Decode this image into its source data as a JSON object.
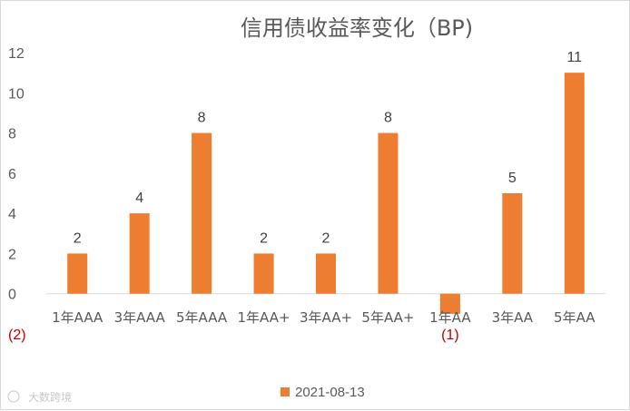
{
  "chart_data": {
    "type": "bar",
    "title": "信用债收益率变化（BP)",
    "categories": [
      "1年AAA",
      "3年AAA",
      "5年AAA",
      "1年AA+",
      "3年AA+",
      "5年AA+",
      "1年AA",
      "3年AA",
      "5年AA"
    ],
    "series": [
      {
        "name": "2021-08-13",
        "values": [
          2,
          4,
          8,
          2,
          2,
          8,
          -1,
          5,
          11
        ],
        "color": "#ed7d31"
      }
    ],
    "data_labels": [
      "2",
      "4",
      "8",
      "2",
      "2",
      "8",
      "(1)",
      "5",
      "11"
    ],
    "y_ticks": [
      -2,
      0,
      2,
      4,
      6,
      8,
      10,
      12
    ],
    "y_tick_labels": [
      "(2)",
      "0",
      "2",
      "4",
      "6",
      "8",
      "10",
      "12"
    ],
    "ylim": [
      -2,
      12
    ],
    "grid": false,
    "legend_position": "bottom",
    "negative_label_color": "#c00000"
  },
  "watermark": "大数跨境"
}
